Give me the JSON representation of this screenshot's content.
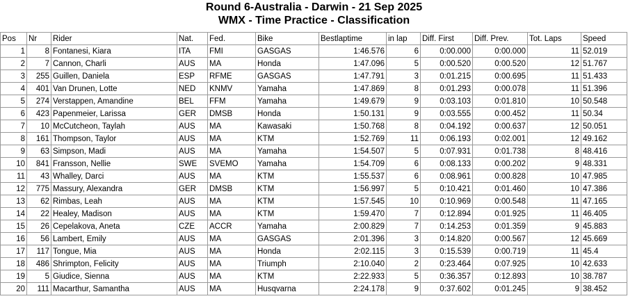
{
  "header": {
    "title": "Round 6-Australia - Darwin - 21 Sep 2025",
    "subtitle": "WMX - Time Practice - Classification"
  },
  "table": {
    "columns": [
      "Pos",
      "Nr",
      "Rider",
      "Nat.",
      "Fed.",
      "Bike",
      "Bestlaptime",
      "in lap",
      "Diff. First",
      "Diff. Prev.",
      "Tot. Laps",
      "Speed"
    ],
    "rows": [
      [
        "1",
        "8",
        "Fontanesi, Kiara",
        "ITA",
        "FMI",
        "GASGAS",
        "1:46.576",
        "6",
        "0:00.000",
        "0:00.000",
        "11",
        "52.019"
      ],
      [
        "2",
        "7",
        "Cannon, Charli",
        "AUS",
        "MA",
        "Honda",
        "1:47.096",
        "5",
        "0:00.520",
        "0:00.520",
        "12",
        "51.767"
      ],
      [
        "3",
        "255",
        "Guillen, Daniela",
        "ESP",
        "RFME",
        "GASGAS",
        "1:47.791",
        "3",
        "0:01.215",
        "0:00.695",
        "11",
        "51.433"
      ],
      [
        "4",
        "401",
        "Van Drunen, Lotte",
        "NED",
        "KNMV",
        "Yamaha",
        "1:47.869",
        "8",
        "0:01.293",
        "0:00.078",
        "11",
        "51.396"
      ],
      [
        "5",
        "274",
        "Verstappen, Amandine",
        "BEL",
        "FFM",
        "Yamaha",
        "1:49.679",
        "9",
        "0:03.103",
        "0:01.810",
        "10",
        "50.548"
      ],
      [
        "6",
        "423",
        "Papenmeier, Larissa",
        "GER",
        "DMSB",
        "Honda",
        "1:50.131",
        "9",
        "0:03.555",
        "0:00.452",
        "11",
        "50.34"
      ],
      [
        "7",
        "10",
        "McCutcheon, Taylah",
        "AUS",
        "MA",
        "Kawasaki",
        "1:50.768",
        "8",
        "0:04.192",
        "0:00.637",
        "12",
        "50.051"
      ],
      [
        "8",
        "161",
        "Thompson, Taylor",
        "AUS",
        "MA",
        "KTM",
        "1:52.769",
        "11",
        "0:06.193",
        "0:02.001",
        "12",
        "49.162"
      ],
      [
        "9",
        "63",
        "Simpson, Madi",
        "AUS",
        "MA",
        "Yamaha",
        "1:54.507",
        "5",
        "0:07.931",
        "0:01.738",
        "8",
        "48.416"
      ],
      [
        "10",
        "841",
        "Fransson, Nellie",
        "SWE",
        "SVEMO",
        "Yamaha",
        "1:54.709",
        "6",
        "0:08.133",
        "0:00.202",
        "9",
        "48.331"
      ],
      [
        "11",
        "43",
        "Whalley, Darci",
        "AUS",
        "MA",
        "KTM",
        "1:55.537",
        "6",
        "0:08.961",
        "0:00.828",
        "10",
        "47.985"
      ],
      [
        "12",
        "775",
        "Massury, Alexandra",
        "GER",
        "DMSB",
        "KTM",
        "1:56.997",
        "5",
        "0:10.421",
        "0:01.460",
        "10",
        "47.386"
      ],
      [
        "13",
        "62",
        "Rimbas, Leah",
        "AUS",
        "MA",
        "KTM",
        "1:57.545",
        "10",
        "0:10.969",
        "0:00.548",
        "11",
        "47.165"
      ],
      [
        "14",
        "22",
        "Healey, Madison",
        "AUS",
        "MA",
        "KTM",
        "1:59.470",
        "7",
        "0:12.894",
        "0:01.925",
        "11",
        "46.405"
      ],
      [
        "15",
        "26",
        "Cepelakova, Aneta",
        "CZE",
        "ACCR",
        "Yamaha",
        "2:00.829",
        "7",
        "0:14.253",
        "0:01.359",
        "9",
        "45.883"
      ],
      [
        "16",
        "56",
        "Lambert, Emily",
        "AUS",
        "MA",
        "GASGAS",
        "2:01.396",
        "3",
        "0:14.820",
        "0:00.567",
        "12",
        "45.669"
      ],
      [
        "17",
        "117",
        "Tongue, Mia",
        "AUS",
        "MA",
        "Honda",
        "2:02.115",
        "3",
        "0:15.539",
        "0:00.719",
        "11",
        "45.4"
      ],
      [
        "18",
        "486",
        "Shrimpton, Felicity",
        "AUS",
        "MA",
        "Triumph",
        "2:10.040",
        "2",
        "0:23.464",
        "0:07.925",
        "10",
        "42.633"
      ],
      [
        "19",
        "5",
        "Giudice, Sienna",
        "AUS",
        "MA",
        "KTM",
        "2:22.933",
        "5",
        "0:36.357",
        "0:12.893",
        "10",
        "38.787"
      ],
      [
        "20",
        "111",
        "Macarthur, Samantha",
        "AUS",
        "MA",
        "Husqvarna",
        "2:24.178",
        "9",
        "0:37.602",
        "0:01.245",
        "9",
        "38.452"
      ]
    ]
  }
}
